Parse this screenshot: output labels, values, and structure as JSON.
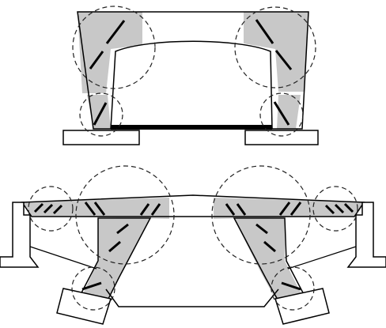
{
  "figure": {
    "upper": {},
    "lower": {}
  },
  "colors": {
    "line": "#000000",
    "region_fill": "#c8c8c8",
    "background": "#ffffff",
    "dash": "#222222"
  }
}
